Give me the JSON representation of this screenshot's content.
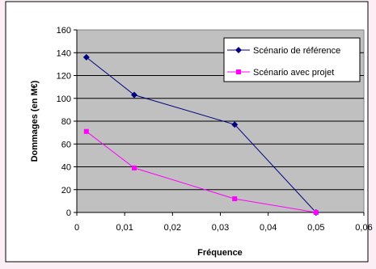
{
  "chart_data": {
    "type": "line",
    "xlabel": "Fréquence",
    "ylabel": "Dommages (en M€)",
    "xlim": [
      0,
      0.06
    ],
    "ylim": [
      0,
      160
    ],
    "x_ticks": [
      "0",
      "0,01",
      "0,02",
      "0,03",
      "0,04",
      "0,05",
      "0,06"
    ],
    "y_ticks": [
      "0",
      "20",
      "40",
      "60",
      "80",
      "100",
      "120",
      "140",
      "160"
    ],
    "grid": true,
    "legend": "top-right",
    "series": [
      {
        "name": "Scénario de référence",
        "color": "#000080",
        "marker": "diamond",
        "x": [
          0.002,
          0.012,
          0.033,
          0.05
        ],
        "y": [
          136,
          103,
          77,
          0
        ]
      },
      {
        "name": "Scénario avec projet",
        "color": "#ff00ff",
        "marker": "square",
        "x": [
          0.002,
          0.012,
          0.033,
          0.05
        ],
        "y": [
          71,
          39,
          12,
          0
        ]
      }
    ]
  }
}
